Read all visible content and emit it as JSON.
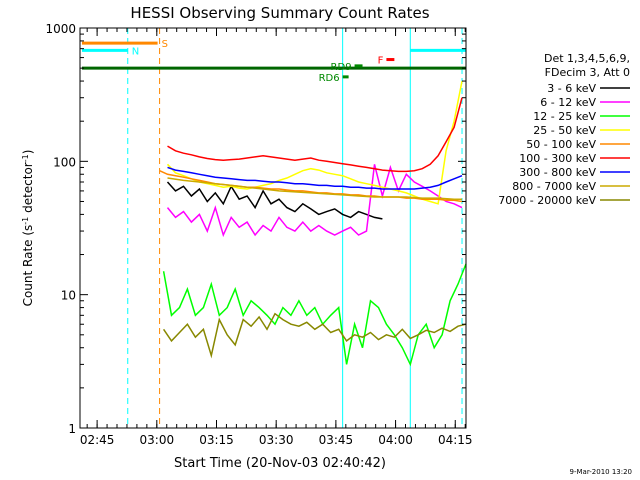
{
  "chart_data": {
    "type": "line",
    "title": "HESSI Observing Summary Count Rates",
    "xlabel": "Start Time (20-Nov-03 02:40:42)",
    "ylabel_main": "Count Rate (s",
    "ylabel_sup1": "-1",
    "ylabel_mid": " detector",
    "ylabel_sup2": "-1",
    "ylabel_end": ")",
    "yscale": "log",
    "ylim": [
      1,
      1000
    ],
    "xlim_minutes": [
      0,
      97
    ],
    "x_ticks": [
      {
        "label": "02:45",
        "m": 4.3
      },
      {
        "label": "03:00",
        "m": 19.3
      },
      {
        "label": "03:15",
        "m": 34.3
      },
      {
        "label": "03:30",
        "m": 49.3
      },
      {
        "label": "03:45",
        "m": 64.3
      },
      {
        "label": "04:00",
        "m": 79.3
      },
      {
        "label": "04:15",
        "m": 94.3
      }
    ],
    "y_ticks": [
      {
        "label": "1",
        "v": 1
      },
      {
        "label": "10",
        "v": 10
      },
      {
        "label": "100",
        "v": 100
      },
      {
        "label": "1000",
        "v": 1000
      }
    ],
    "legend_header": [
      "Det 1,3,4,5,6,9,",
      "FDecim 3, Att 0"
    ],
    "legend_position": "right",
    "series": [
      {
        "name": "3 - 6 keV",
        "color": "#000000",
        "x": [
          22,
          24,
          26,
          28,
          30,
          32,
          34,
          36,
          38,
          40,
          42,
          44,
          46,
          48,
          50,
          52,
          54,
          56,
          58,
          60,
          62,
          64,
          66,
          68,
          70,
          72,
          74,
          76
        ],
        "y": [
          70,
          60,
          65,
          55,
          62,
          50,
          58,
          48,
          65,
          52,
          55,
          45,
          60,
          48,
          52,
          45,
          42,
          48,
          44,
          40,
          42,
          44,
          40,
          38,
          42,
          40,
          38,
          37
        ]
      },
      {
        "name": "6 - 12 keV",
        "color": "#ff00ff",
        "x": [
          22,
          24,
          26,
          28,
          30,
          32,
          34,
          36,
          38,
          40,
          42,
          44,
          46,
          48,
          50,
          52,
          54,
          56,
          58,
          60,
          62,
          64,
          66,
          68,
          70,
          72,
          74,
          76,
          78,
          80,
          82,
          84,
          86,
          88,
          90,
          92,
          94,
          96
        ],
        "y": [
          45,
          38,
          42,
          35,
          40,
          30,
          45,
          28,
          38,
          32,
          35,
          28,
          33,
          30,
          38,
          32,
          30,
          35,
          30,
          33,
          30,
          28,
          30,
          32,
          28,
          30,
          95,
          55,
          90,
          60,
          80,
          70,
          65,
          60,
          55,
          50,
          48,
          45
        ]
      },
      {
        "name": "12 - 25 keV",
        "color": "#00ff00",
        "x": [
          21,
          23,
          25,
          27,
          29,
          31,
          33,
          35,
          37,
          39,
          41,
          43,
          45,
          47,
          49,
          51,
          53,
          55,
          57,
          59,
          61,
          63,
          65,
          67,
          69,
          71,
          73,
          75,
          77,
          79,
          81,
          83,
          85,
          87,
          89,
          91,
          93,
          95,
          97
        ],
        "y": [
          15,
          7,
          8,
          11,
          7,
          8,
          12,
          7,
          8,
          11,
          7,
          9,
          8,
          7,
          6,
          8,
          7,
          9,
          7,
          8,
          6,
          7,
          8,
          3,
          6,
          4,
          9,
          8,
          6,
          5,
          4,
          3,
          5,
          6,
          4,
          5,
          9,
          12,
          17
        ]
      },
      {
        "name": "25 - 50 keV",
        "color": "#ffff00",
        "x": [
          22,
          24,
          26,
          28,
          30,
          32,
          34,
          36,
          38,
          40,
          42,
          44,
          46,
          48,
          50,
          52,
          54,
          56,
          58,
          60,
          62,
          64,
          66,
          68,
          70,
          72,
          74,
          76,
          78,
          80,
          82,
          84,
          86,
          88,
          90,
          92,
          94,
          96
        ],
        "y": [
          95,
          82,
          78,
          74,
          70,
          68,
          66,
          64,
          65,
          63,
          62,
          64,
          66,
          68,
          72,
          75,
          80,
          85,
          88,
          86,
          82,
          80,
          78,
          74,
          70,
          68,
          66,
          64,
          62,
          60,
          58,
          55,
          52,
          50,
          48,
          120,
          200,
          400
        ]
      },
      {
        "name": "50 - 100 keV",
        "color": "#ff8800",
        "x": [
          20,
          22,
          24,
          26,
          28,
          30,
          32,
          34,
          36,
          38,
          40,
          42,
          44,
          46,
          48,
          50,
          52,
          54,
          56,
          58,
          60,
          62,
          64,
          66,
          68,
          70,
          72,
          74,
          76,
          78,
          80,
          82,
          84,
          86,
          88,
          90,
          92,
          94,
          96
        ],
        "y": [
          85,
          80,
          78,
          76,
          74,
          72,
          70,
          68,
          67,
          66,
          65,
          64,
          64,
          63,
          62,
          62,
          61,
          60,
          60,
          59,
          58,
          58,
          57,
          57,
          56,
          56,
          55,
          55,
          54,
          54,
          54,
          53,
          53,
          52,
          52,
          52,
          51,
          51,
          50
        ]
      },
      {
        "name": "100 - 300 keV",
        "color": "#ff0000",
        "x": [
          22,
          24,
          26,
          28,
          30,
          32,
          34,
          36,
          38,
          40,
          42,
          44,
          46,
          48,
          50,
          52,
          54,
          56,
          58,
          60,
          62,
          64,
          66,
          68,
          70,
          72,
          74,
          76,
          78,
          80,
          82,
          84,
          86,
          88,
          90,
          92,
          94,
          96
        ],
        "y": [
          130,
          120,
          115,
          112,
          108,
          105,
          103,
          102,
          103,
          104,
          106,
          108,
          110,
          108,
          106,
          104,
          102,
          104,
          106,
          102,
          100,
          98,
          96,
          94,
          92,
          90,
          88,
          86,
          85,
          84,
          84,
          85,
          88,
          95,
          110,
          140,
          180,
          300
        ]
      },
      {
        "name": "300 - 800 keV",
        "color": "#0000ff",
        "x": [
          22,
          24,
          26,
          28,
          30,
          32,
          34,
          36,
          38,
          40,
          42,
          44,
          46,
          48,
          50,
          52,
          54,
          56,
          58,
          60,
          62,
          64,
          66,
          68,
          70,
          72,
          74,
          76,
          78,
          80,
          82,
          84,
          86,
          88,
          90,
          92,
          94,
          96
        ],
        "y": [
          90,
          86,
          84,
          82,
          80,
          78,
          76,
          75,
          74,
          73,
          72,
          72,
          71,
          70,
          70,
          69,
          68,
          68,
          67,
          66,
          66,
          65,
          65,
          64,
          64,
          63,
          63,
          62,
          62,
          62,
          62,
          62,
          63,
          64,
          66,
          70,
          74,
          78
        ]
      },
      {
        "name": "800 - 7000 keV",
        "color": "#ccaa00",
        "x": [
          22,
          26,
          30,
          34,
          38,
          42,
          46,
          50,
          54,
          58,
          62,
          66,
          70,
          74,
          78,
          82,
          86,
          90,
          94,
          96
        ],
        "y": [
          75,
          72,
          70,
          68,
          66,
          64,
          62,
          60,
          59,
          58,
          57,
          56,
          55,
          54,
          54,
          54,
          53,
          53,
          52,
          52
        ]
      },
      {
        "name": "7000 - 20000 keV",
        "color": "#888800",
        "x": [
          21,
          23,
          25,
          27,
          29,
          31,
          33,
          35,
          37,
          39,
          41,
          43,
          45,
          47,
          49,
          51,
          53,
          55,
          57,
          59,
          61,
          63,
          65,
          67,
          69,
          71,
          73,
          75,
          77,
          79,
          81,
          83,
          85,
          87,
          89,
          91,
          93,
          95,
          97
        ],
        "y": [
          5.5,
          4.5,
          5.2,
          6,
          4.8,
          5.5,
          3.5,
          6.5,
          5,
          4.2,
          6.5,
          5.8,
          6.8,
          5.5,
          7.2,
          6.5,
          6,
          5.8,
          6.2,
          5.5,
          6,
          5.2,
          5.5,
          4.5,
          5,
          4.8,
          5.2,
          4.6,
          5,
          4.8,
          5.5,
          4.7,
          5,
          5.4,
          5.2,
          5.6,
          5.3,
          5.8,
          6
        ]
      }
    ],
    "markers": [
      {
        "label": "S",
        "color": "#ff8800",
        "y": 770,
        "x0": 0.5,
        "x1": 19.5
      },
      {
        "label": "N",
        "color": "#00ffff",
        "y": 680,
        "x0": 0.5,
        "x1": 12
      },
      {
        "label": "F",
        "color": "#ff0000",
        "y": 580,
        "x0": 77,
        "x1": 79
      },
      {
        "label": "RD9",
        "color": "#008800",
        "y": 520,
        "x0": 69,
        "x1": 71
      },
      {
        "label": "RD6",
        "color": "#008800",
        "y": 430,
        "x0": 66,
        "x1": 67.5
      }
    ],
    "saa_line": {
      "color": "#006600",
      "y": 500,
      "x0": 0.5,
      "x1": 97
    },
    "cyan_top": {
      "color": "#00ffff",
      "y": 680,
      "x0": 83,
      "x1": 97
    },
    "vlines": [
      {
        "m": 12,
        "color": "#00ffff",
        "style": "dashed"
      },
      {
        "m": 20,
        "color": "#ff8800",
        "style": "dashed"
      },
      {
        "m": 66,
        "color": "#00ffff",
        "style": "solid"
      },
      {
        "m": 83,
        "color": "#00ffff",
        "style": "solid"
      },
      {
        "m": 96,
        "color": "#00ffff",
        "style": "dashed"
      }
    ],
    "timestamp": "9-Mar-2010 13:20"
  }
}
